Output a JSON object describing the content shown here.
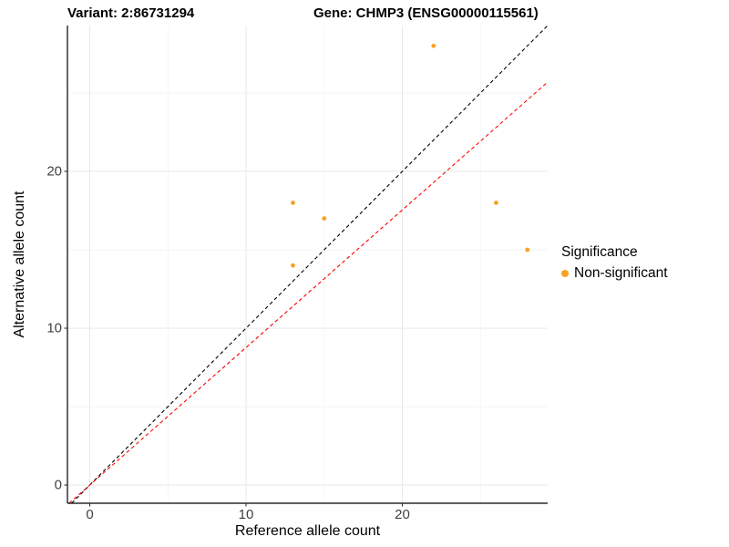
{
  "header": {
    "variant_title": "Variant: 2:86731294",
    "gene_title": "Gene: CHMP3 (ENSG00000115561)"
  },
  "chart_data": {
    "type": "scatter",
    "xlabel": "Reference allele count",
    "ylabel": "Alternative allele count",
    "xlim": [
      -1.43,
      29.3
    ],
    "ylim": [
      -1.16,
      29.3
    ],
    "x_ticks": [
      0,
      10,
      20
    ],
    "y_ticks": [
      0,
      10,
      20
    ],
    "x_minor_ticks": [
      5,
      15,
      25
    ],
    "y_minor_ticks": [
      5,
      15,
      25
    ],
    "grid": true,
    "series": [
      {
        "name": "Non-significant",
        "color": "#F9A125",
        "points": [
          {
            "x": 13,
            "y": 18
          },
          {
            "x": 13,
            "y": 14
          },
          {
            "x": 15,
            "y": 17
          },
          {
            "x": 22,
            "y": 28
          },
          {
            "x": 26,
            "y": 18
          },
          {
            "x": 28,
            "y": 15
          }
        ]
      }
    ],
    "lines": [
      {
        "name": "identity-line",
        "slope": 1,
        "intercept": 0,
        "color": "#000000",
        "style": "dashed"
      },
      {
        "name": "expected-ratio-line",
        "slope": 0.877,
        "intercept": 0,
        "color": "#FF0000",
        "style": "dashed"
      }
    ],
    "legend": {
      "title": "Significance",
      "position": "right",
      "items": [
        {
          "label": "Non-significant",
          "color": "#F9A125"
        }
      ]
    }
  },
  "colors": {
    "grid_major": "#E6E6E6",
    "grid_minor": "#F2F2F2",
    "axis": "#000000",
    "tick_label": "#404040"
  }
}
